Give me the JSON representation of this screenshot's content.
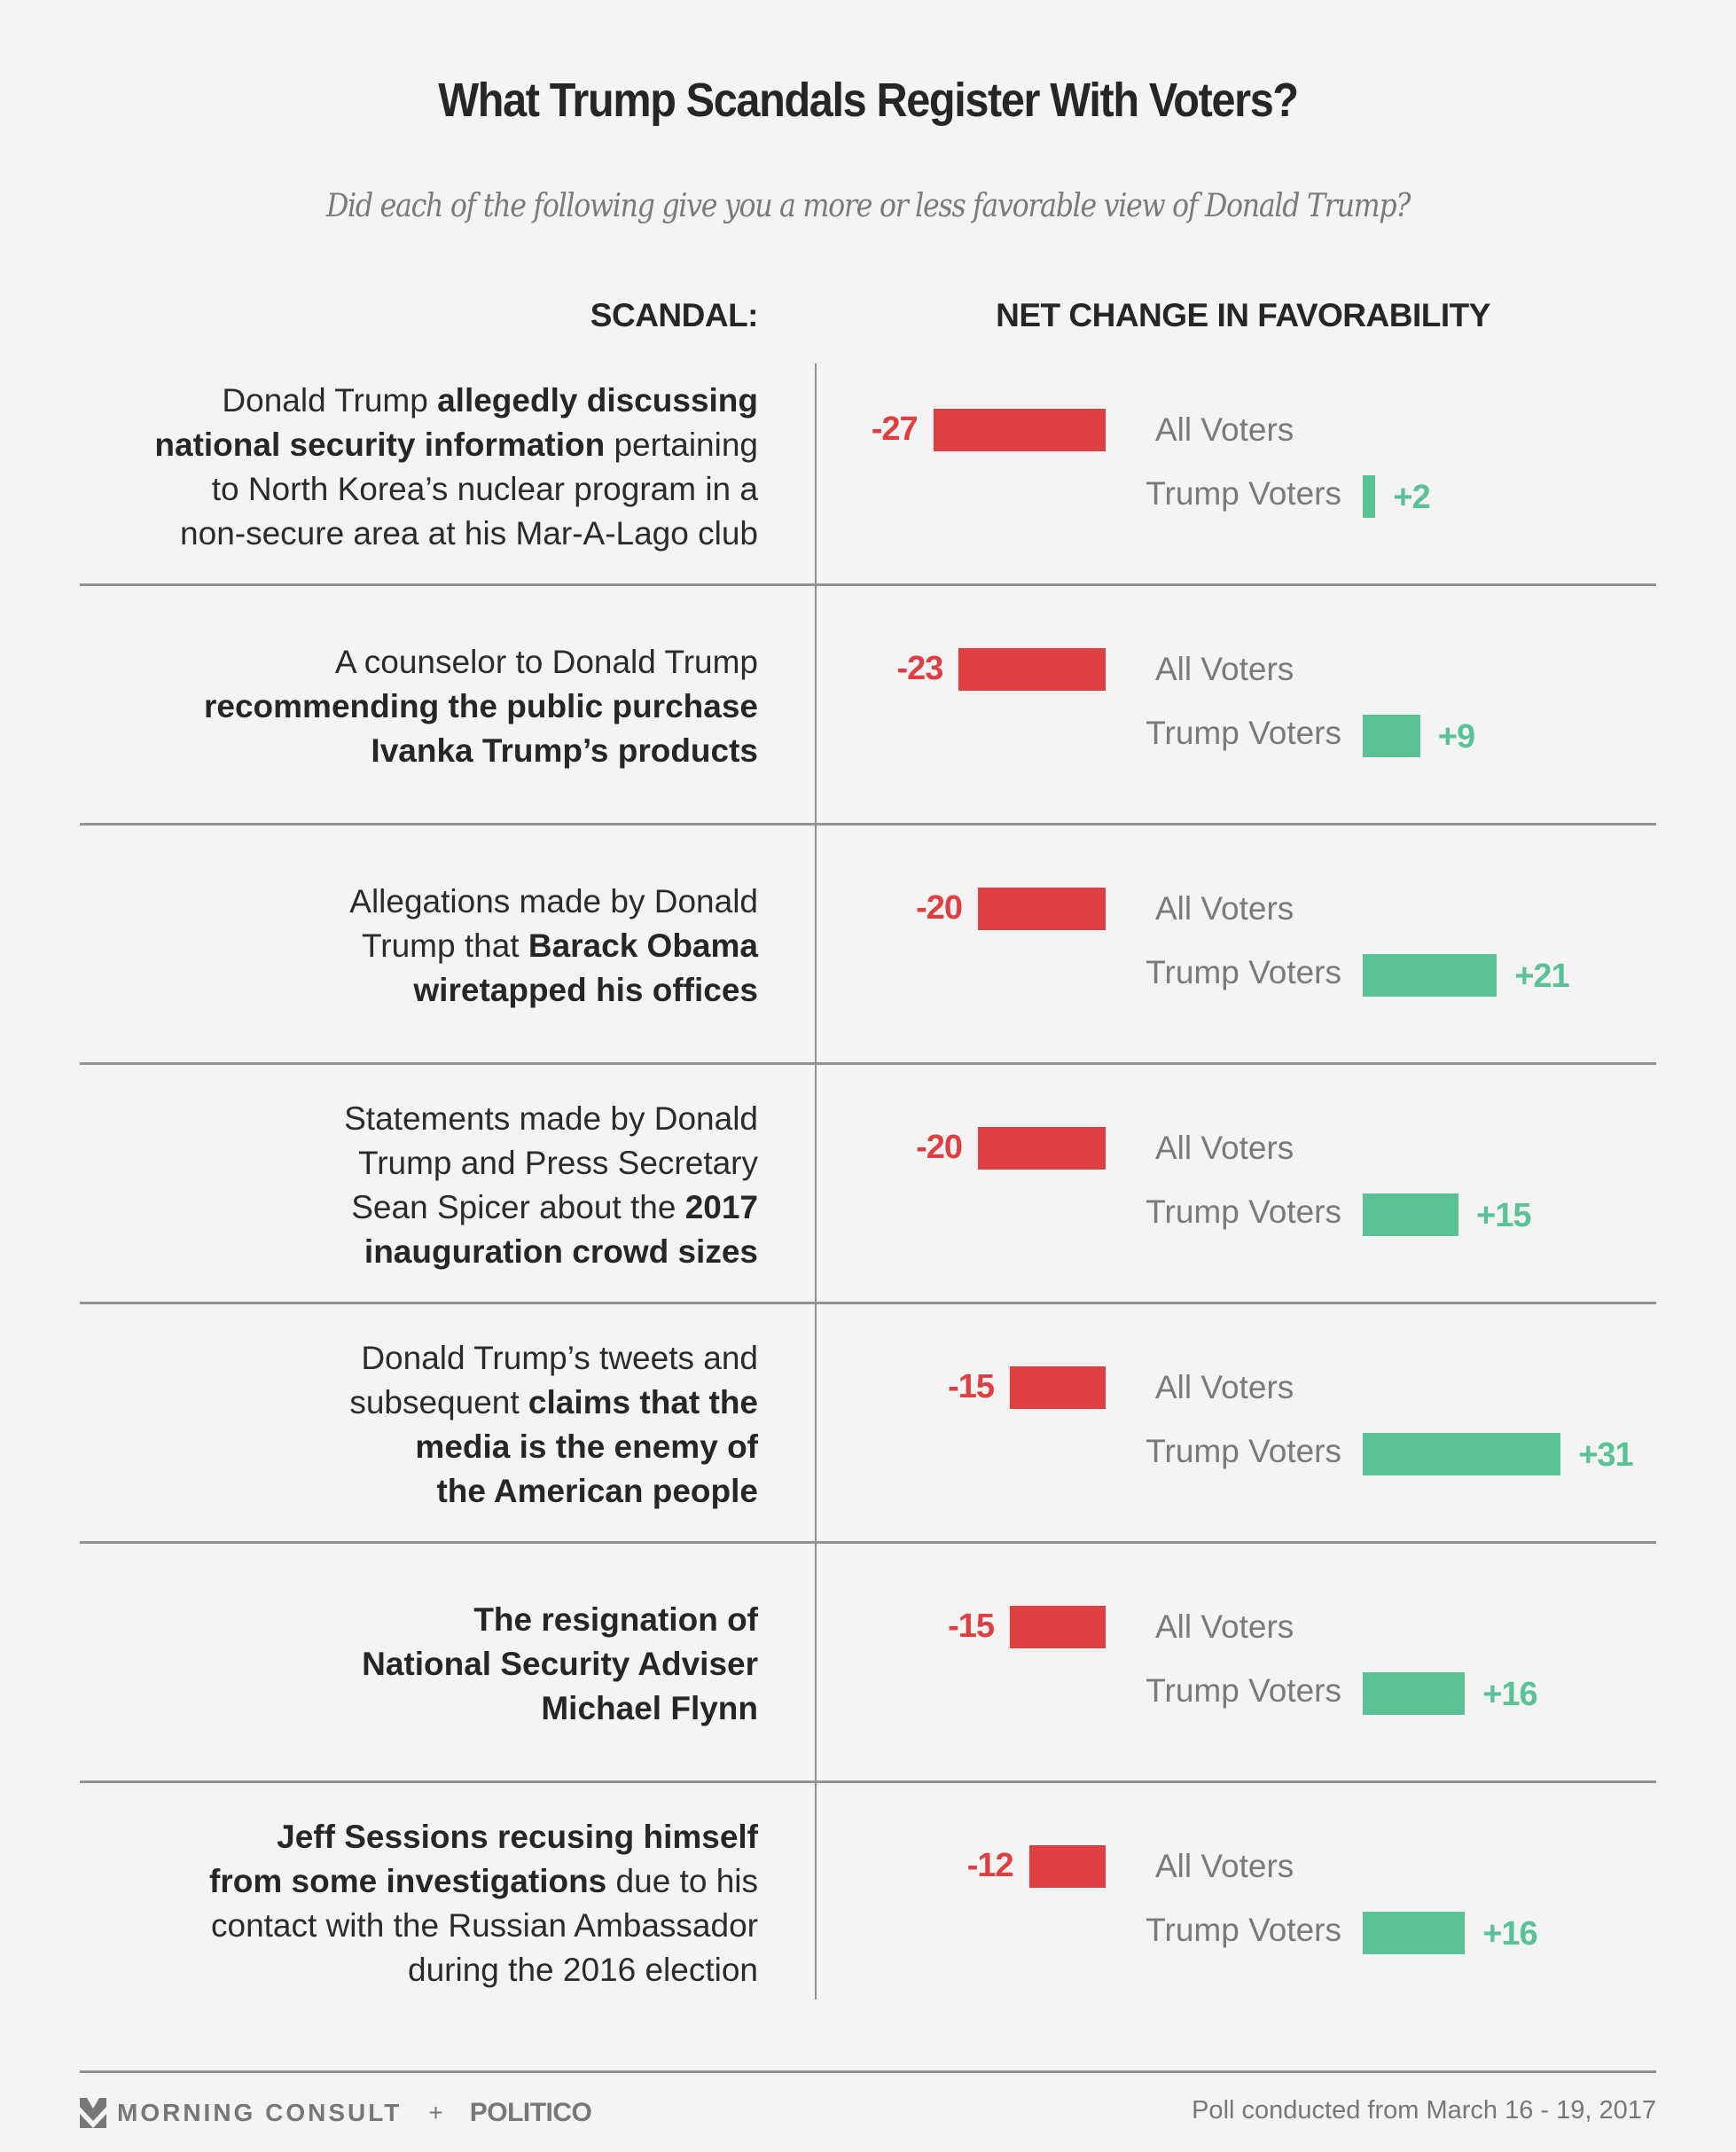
{
  "title": "What Trump Scandals Register With Voters?",
  "subtitle": "Did each of the following give you a more or less favorable view of Donald Trump?",
  "headers": {
    "left": "SCANDAL:",
    "right": "NET CHANGE IN FAVORABILITY"
  },
  "colors": {
    "negative": "#e03f41",
    "positive": "#5bc196",
    "text": "#2b2b2b",
    "muted": "#7a7a7a"
  },
  "footer": {
    "brand1": "MORNING CONSULT",
    "plus": "+",
    "brand2": "POLITICO",
    "brand1_icon": "morning-consult-logo-icon",
    "note": "Poll conducted from March 16 - 19, 2017"
  },
  "chart_data": {
    "type": "bar",
    "title": "What Trump Scandals Register With Voters?",
    "subtitle": "Did each of the following give you a more or less favorable view of Donald Trump?",
    "xlabel": "NET CHANGE IN FAVORABILITY",
    "ylabel": "SCANDAL:",
    "series_names": [
      "All Voters",
      "Trump Voters"
    ],
    "rows": [
      {
        "segments": [
          {
            "t": "Donald Trump ",
            "b": false
          },
          {
            "t": "allegedly discussing national security information",
            "b": true
          },
          {
            "t": " pertaining to North Korea’s nuclear program in a non-secure area at his Mar-A-Lago club",
            "b": false
          }
        ],
        "lines": [
          "Donald Trump |allegedly discussing|",
          "|national security information| pertaining",
          "to North Korea’s nuclear program in a",
          "non-secure area at his Mar-A-Lago club"
        ],
        "all_voters": -27,
        "all_label": "-27",
        "trump_voters": 2,
        "trump_label": "+2"
      },
      {
        "lines": [
          "A counselor to Donald Trump",
          "|recommending the public purchase|",
          "|Ivanka Trump’s products|"
        ],
        "all_voters": -23,
        "all_label": "-23",
        "trump_voters": 9,
        "trump_label": "+9"
      },
      {
        "lines": [
          "Allegations made by Donald",
          "Trump that |Barack Obama|",
          "|wiretapped his offices|"
        ],
        "all_voters": -20,
        "all_label": "-20",
        "trump_voters": 21,
        "trump_label": "+21"
      },
      {
        "lines": [
          "Statements made by Donald",
          "Trump and Press Secretary",
          "Sean Spicer about the |2017|",
          "|inauguration crowd sizes|"
        ],
        "all_voters": -20,
        "all_label": "-20",
        "trump_voters": 15,
        "trump_label": "+15"
      },
      {
        "lines": [
          "Donald Trump’s tweets and",
          "subsequent |claims that the|",
          "|media is the enemy of|",
          "|the American people|"
        ],
        "all_voters": -15,
        "all_label": "-15",
        "trump_voters": 31,
        "trump_label": "+31"
      },
      {
        "lines": [
          "|The resignation of|",
          "|National Security Adviser|",
          "|Michael Flynn|"
        ],
        "all_voters": -15,
        "all_label": "-15",
        "trump_voters": 16,
        "trump_label": "+16"
      },
      {
        "lines": [
          "|Jeff Sessions recusing himself|",
          "|from some investigations| due to his",
          "contact with the Russian Ambassador",
          "during the 2016 election"
        ],
        "all_voters": -12,
        "all_label": "-12",
        "trump_voters": 16,
        "trump_label": "+16"
      }
    ]
  }
}
